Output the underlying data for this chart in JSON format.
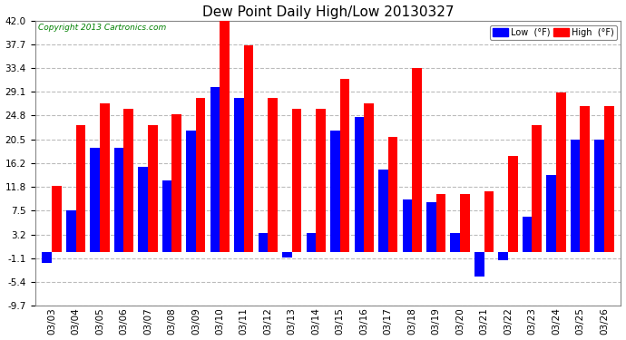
{
  "title": "Dew Point Daily High/Low 20130327",
  "copyright": "Copyright 2013 Cartronics.com",
  "dates": [
    "03/03",
    "03/04",
    "03/05",
    "03/06",
    "03/07",
    "03/08",
    "03/09",
    "03/10",
    "03/11",
    "03/12",
    "03/13",
    "03/14",
    "03/15",
    "03/16",
    "03/17",
    "03/18",
    "03/19",
    "03/20",
    "03/21",
    "03/22",
    "03/23",
    "03/24",
    "03/25",
    "03/26"
  ],
  "low_values": [
    -2.0,
    7.5,
    19.0,
    19.0,
    15.5,
    13.0,
    22.0,
    30.0,
    28.0,
    3.5,
    -1.0,
    3.5,
    22.0,
    24.5,
    15.0,
    9.5,
    9.0,
    3.5,
    -4.5,
    -1.5,
    6.5,
    14.0,
    20.5,
    20.5
  ],
  "high_values": [
    12.0,
    23.0,
    27.0,
    26.0,
    23.0,
    25.0,
    28.0,
    42.0,
    37.5,
    28.0,
    26.0,
    26.0,
    31.5,
    27.0,
    21.0,
    33.5,
    10.5,
    10.5,
    11.0,
    17.5,
    23.0,
    29.0,
    26.5,
    26.5
  ],
  "low_color": "#0000ff",
  "high_color": "#ff0000",
  "bg_color": "#ffffff",
  "grid_color": "#bbbbbb",
  "ylim_min": -9.7,
  "ylim_max": 42.0,
  "yticks": [
    -9.7,
    -5.4,
    -1.1,
    3.2,
    7.5,
    11.8,
    16.2,
    20.5,
    24.8,
    29.1,
    33.4,
    37.7,
    42.0
  ],
  "title_fontsize": 11,
  "tick_fontsize": 7.5,
  "legend_low_label": "Low  (°F)",
  "legend_high_label": "High  (°F)"
}
